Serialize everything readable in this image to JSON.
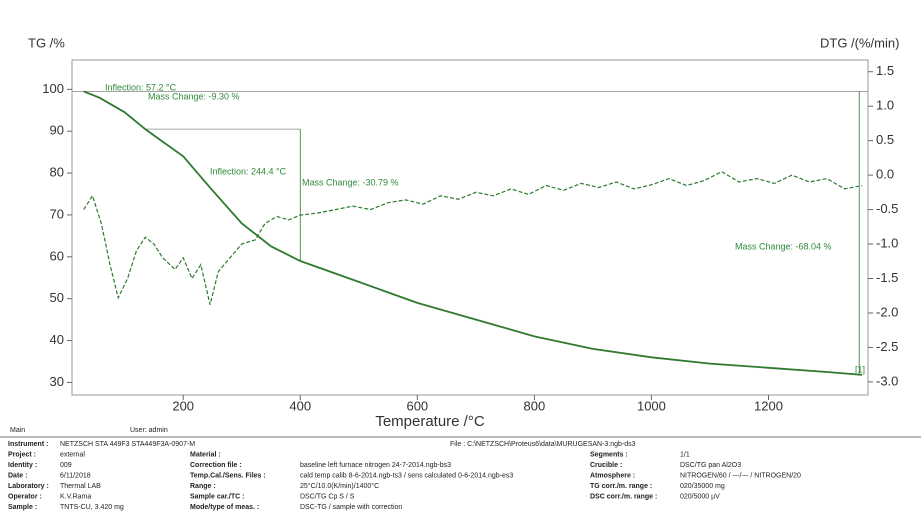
{
  "chart_data": {
    "type": "line",
    "y_label": "TG /%",
    "y2_label": "DTG /(%/min)",
    "x_label": "Temperature /°C",
    "xlim": [
      10,
      1370
    ],
    "ylim": [
      27,
      107
    ],
    "y2lim": [
      -3.19,
      1.67
    ],
    "xticks": [
      200,
      400,
      600,
      800,
      1000,
      1200
    ],
    "yticks": [
      30,
      40,
      50,
      60,
      70,
      80,
      90,
      100
    ],
    "y2ticks": [
      {
        "value": -3,
        "label": "-3.0"
      },
      -2.5,
      {
        "value": -2,
        "label": "-2.0"
      },
      -1.5,
      {
        "value": -1,
        "label": "-1.0"
      },
      -0.5,
      {
        "value": 0,
        "label": "0.0"
      },
      0.5,
      {
        "value": 1,
        "label": "1.0"
      },
      1.5
    ],
    "series": [
      {
        "name": "TG",
        "color": "#2f7a2f",
        "x": [
          30,
          57,
          100,
          135,
          160,
          200,
          246,
          300,
          350,
          400,
          500,
          600,
          700,
          800,
          900,
          1000,
          1100,
          1200,
          1300,
          1360
        ],
        "values": [
          99.5,
          98,
          94.5,
          90.5,
          88,
          84,
          76.5,
          68,
          62.5,
          59,
          54,
          49,
          45,
          41,
          38,
          36,
          34.5,
          33.5,
          32.5,
          31.8
        ]
      },
      {
        "name": "DTG",
        "color": "#2f7a2f",
        "axis": "y2",
        "x": [
          30,
          45,
          60,
          75,
          89,
          105,
          120,
          135,
          150,
          165,
          186,
          200,
          215,
          230,
          246,
          260,
          280,
          300,
          323,
          340,
          360,
          380,
          400,
          430,
          460,
          490,
          520,
          550,
          580,
          610,
          640,
          670,
          700,
          730,
          760,
          790,
          820,
          850,
          880,
          910,
          940,
          970,
          1000,
          1030,
          1060,
          1090,
          1120,
          1150,
          1180,
          1210,
          1240,
          1270,
          1300,
          1330,
          1360
        ],
        "values": [
          -0.5,
          -0.3,
          -0.7,
          -1.3,
          -1.78,
          -1.5,
          -1.1,
          -0.9,
          -1.0,
          -1.2,
          -1.37,
          -1.2,
          -1.5,
          -1.3,
          -1.88,
          -1.4,
          -1.2,
          -1.0,
          -0.94,
          -0.7,
          -0.6,
          -0.65,
          -0.58,
          -0.55,
          -0.5,
          -0.45,
          -0.5,
          -0.4,
          -0.36,
          -0.42,
          -0.3,
          -0.35,
          -0.25,
          -0.3,
          -0.2,
          -0.28,
          -0.15,
          -0.22,
          -0.12,
          -0.18,
          -0.1,
          -0.2,
          -0.14,
          -0.05,
          -0.15,
          -0.08,
          0.05,
          -0.1,
          -0.05,
          -0.12,
          0.0,
          -0.1,
          -0.05,
          -0.2,
          -0.15
        ]
      }
    ],
    "annotations": [
      "Inflection: 57.2 °C",
      "Mass Change: -9.30 %",
      "Inflection: 244.4 °C",
      "Mass Change: -30.79 %",
      "Mass Change: -68.04 %",
      "[1]"
    ],
    "footer": [
      "Main",
      "User: admin"
    ]
  },
  "info": {
    "file": "File : C:\\NETZSCH\\Proteus6\\data\\MURUGESAN-3.ngb-ds3",
    "rows": [
      [
        "Instrument :",
        "NETZSCH STA 449F3 STA449F3A-0907-M",
        "",
        "",
        "",
        ""
      ],
      [
        "Project :",
        "external",
        "Material :",
        "",
        "Segments :",
        "1/1"
      ],
      [
        "Identity :",
        "009",
        "Correction file :",
        "baseline left furnace nitrogen 24-7-2014.ngb-bs3",
        "Crucible :",
        "DSC/TG pan Al2O3"
      ],
      [
        "Date :",
        "6/11/2018",
        "Temp.Cal./Sens. Files :",
        "cald temp calib 8-6-2014.ngb-ts3 / sens calculated 0-6-2014.ngb-es3",
        "Atmosphere :",
        "NITROGEN/60 / ---/--- / NITROGEN/20"
      ],
      [
        "Laboratory :",
        "Thermal LAB",
        "Range :",
        "25°C/10.0(K/min)/1400°C",
        "TG corr./m. range :",
        "020/35000 mg"
      ],
      [
        "Operator :",
        "K.V.Rama",
        "Sample car./TC :",
        "DSC/TG Cp S / S",
        "DSC corr./m. range :",
        "020/5000 µV"
      ],
      [
        "Sample :",
        "TNTS-CU, 3.420 mg",
        "Mode/type of meas. :",
        "DSC-TG / sample with correction",
        "",
        ""
      ]
    ]
  }
}
